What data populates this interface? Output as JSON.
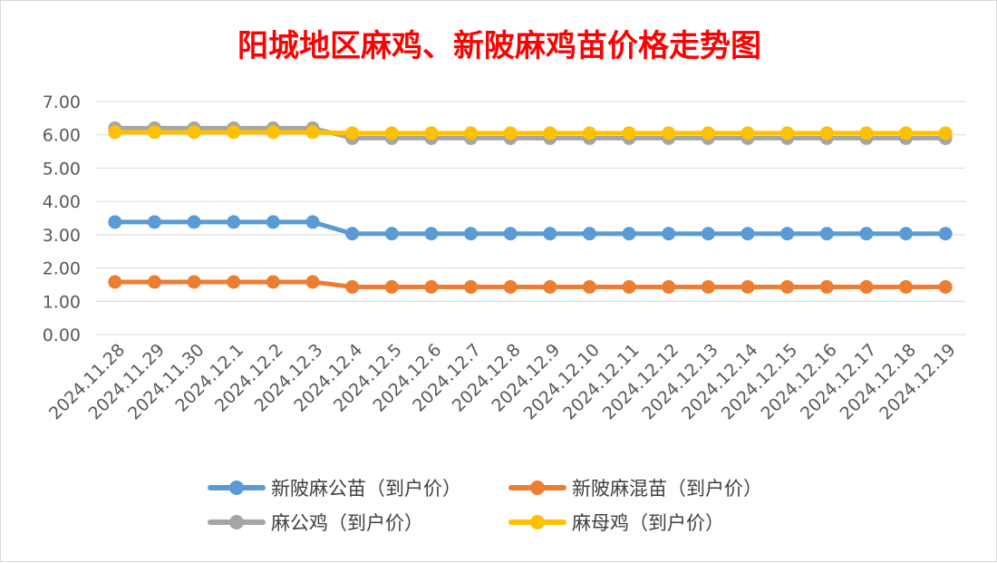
{
  "chart_data": {
    "type": "line",
    "title": "阳城地区麻鸡、新陂麻鸡苗价格走势图",
    "categories": [
      "2024.11.28",
      "2024.11.29",
      "2024.11.30",
      "2024.12.1",
      "2024.12.2",
      "2024.12.3",
      "2024.12.4",
      "2024.12.5",
      "2024.12.6",
      "2024.12.7",
      "2024.12.8",
      "2024.12.9",
      "2024.12.10",
      "2024.12.11",
      "2024.12.12",
      "2024.12.13",
      "2024.12.14",
      "2024.12.15",
      "2024.12.16",
      "2024.12.17",
      "2024.12.18",
      "2024.12.19"
    ],
    "ylim": [
      0,
      7
    ],
    "yticks": [
      "0.00",
      "1.00",
      "2.00",
      "3.00",
      "4.00",
      "5.00",
      "6.00",
      "7.00"
    ],
    "grid": true,
    "legend_position": "bottom",
    "series": [
      {
        "name": "新陂麻公苗（到户价）",
        "color": "#5b9bd5",
        "values": [
          3.38,
          3.38,
          3.38,
          3.38,
          3.38,
          3.38,
          3.03,
          3.03,
          3.03,
          3.03,
          3.03,
          3.03,
          3.03,
          3.03,
          3.03,
          3.03,
          3.03,
          3.03,
          3.03,
          3.03,
          3.03,
          3.03
        ]
      },
      {
        "name": "新陂麻混苗（到户价）",
        "color": "#ed7d31",
        "values": [
          1.58,
          1.58,
          1.58,
          1.58,
          1.58,
          1.58,
          1.43,
          1.43,
          1.43,
          1.43,
          1.43,
          1.43,
          1.43,
          1.43,
          1.43,
          1.43,
          1.43,
          1.43,
          1.43,
          1.43,
          1.43,
          1.43
        ]
      },
      {
        "name": "麻公鸡（到户价）",
        "color": "#a5a5a5",
        "values": [
          6.2,
          6.2,
          6.2,
          6.2,
          6.2,
          6.2,
          5.9,
          5.9,
          5.9,
          5.9,
          5.9,
          5.9,
          5.9,
          5.9,
          5.9,
          5.9,
          5.9,
          5.9,
          5.9,
          5.9,
          5.9,
          5.9
        ]
      },
      {
        "name": "麻母鸡（到户价）",
        "color": "#ffc000",
        "values": [
          6.08,
          6.08,
          6.08,
          6.08,
          6.08,
          6.08,
          6.05,
          6.05,
          6.05,
          6.05,
          6.05,
          6.05,
          6.05,
          6.05,
          6.05,
          6.05,
          6.05,
          6.05,
          6.05,
          6.05,
          6.05,
          6.05
        ]
      }
    ]
  }
}
